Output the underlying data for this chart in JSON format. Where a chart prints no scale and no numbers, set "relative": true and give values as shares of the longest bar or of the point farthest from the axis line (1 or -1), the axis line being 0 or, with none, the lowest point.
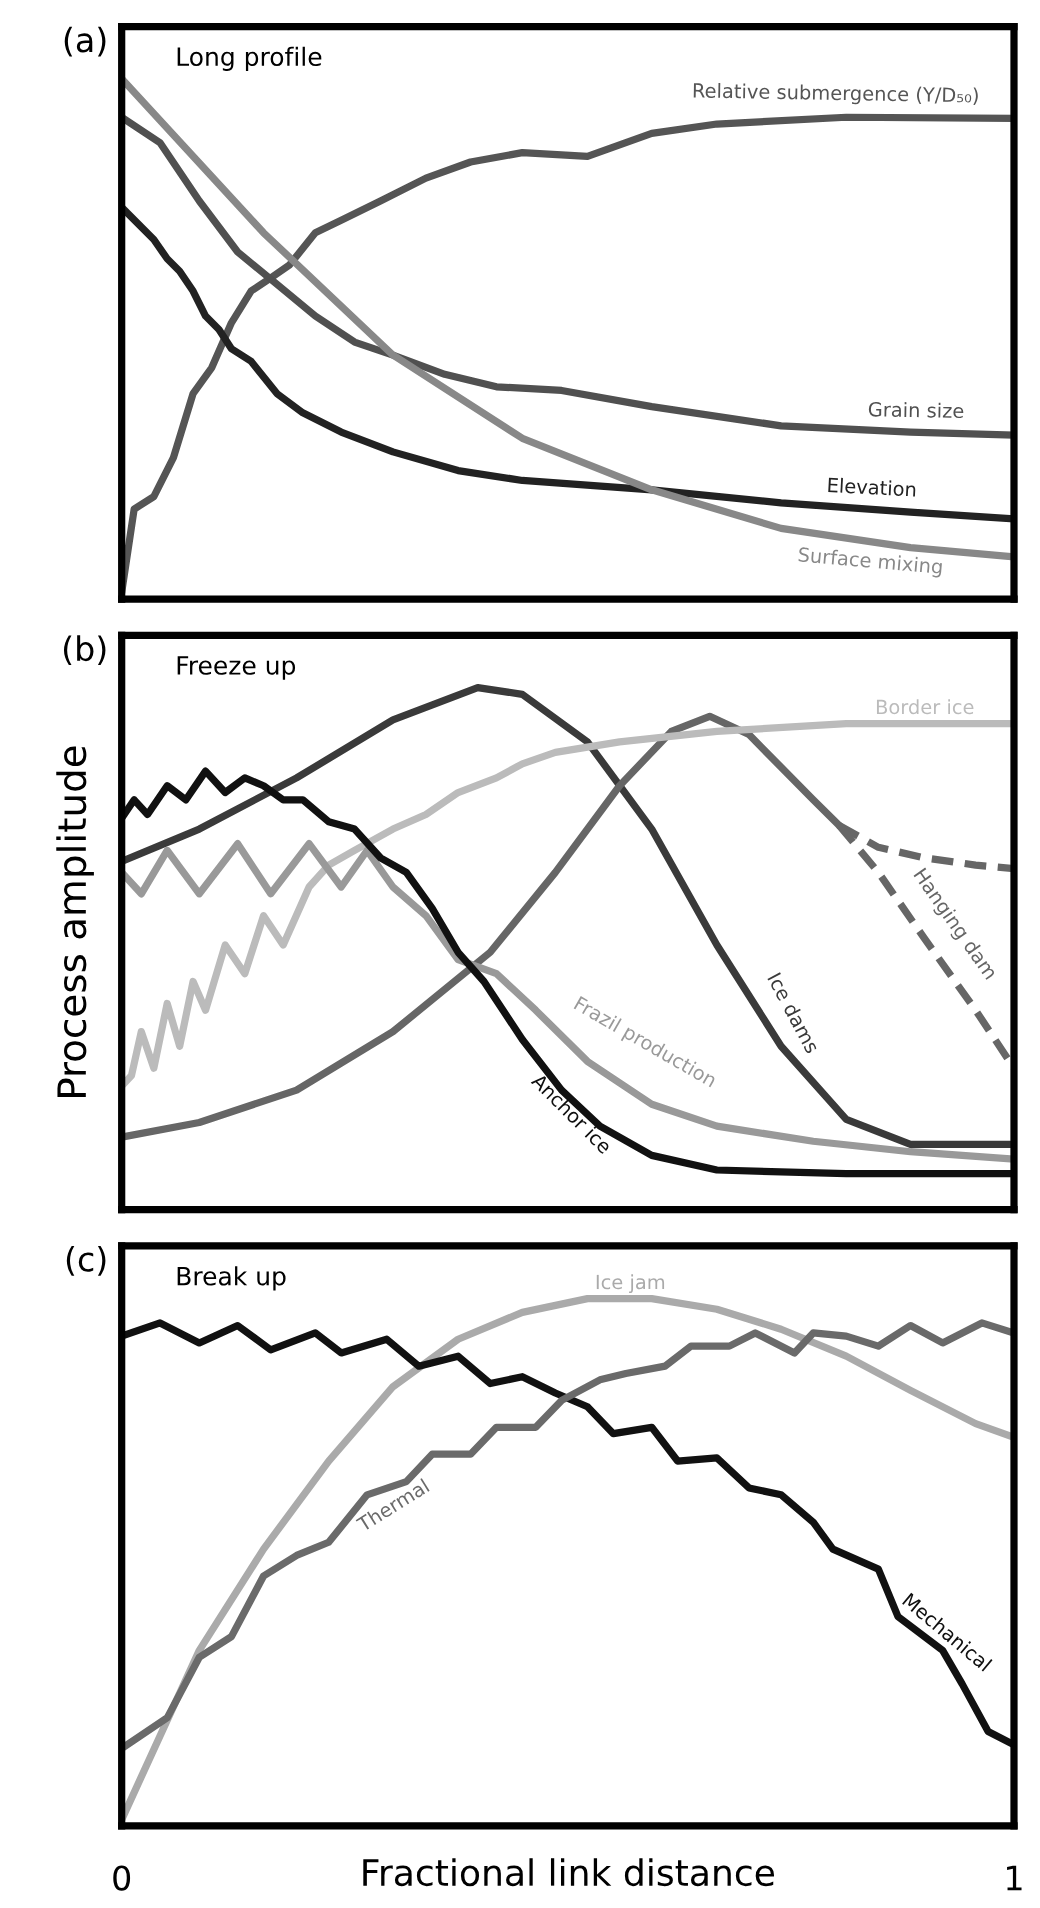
{
  "chart_data": [
    {
      "type": "line",
      "title": "Long profile",
      "annotations": [
        "(a)"
      ],
      "relative": true,
      "xlim": [
        0,
        1
      ],
      "xticks": [
        0,
        1
      ],
      "tick_labels": false,
      "legend": false,
      "marker": "none",
      "line_style": "solid",
      "series": [
        {
          "name": "Relative submergence (Y/D₅₀)",
          "color": "#555555",
          "x": [
            0,
            0.014,
            0.036,
            0.058,
            0.08,
            0.101,
            0.123,
            0.145,
            0.167,
            0.188,
            0.217,
            0.246,
            0.29,
            0.341,
            0.391,
            0.449,
            0.522,
            0.594,
            0.667,
            0.812,
            1
          ],
          "values": [
            0.013,
            0.173,
            0.197,
            0.272,
            0.395,
            0.445,
            0.531,
            0.592,
            0.617,
            0.642,
            0.704,
            0.728,
            0.765,
            0.809,
            0.84,
            0.858,
            0.851,
            0.895,
            0.913,
            0.926,
            0.924
          ]
        },
        {
          "name": "Grain size",
          "color": "#505050",
          "x": [
            0,
            0.043,
            0.087,
            0.13,
            0.174,
            0.217,
            0.261,
            0.304,
            0.362,
            0.42,
            0.493,
            0.594,
            0.739,
            0.884,
            1
          ],
          "values": [
            0.926,
            0.877,
            0.765,
            0.667,
            0.605,
            0.544,
            0.494,
            0.469,
            0.432,
            0.408,
            0.401,
            0.37,
            0.333,
            0.321,
            0.315
          ]
        },
        {
          "name": "Elevation",
          "color": "#222222",
          "x": [
            0,
            0.036,
            0.051,
            0.065,
            0.08,
            0.094,
            0.109,
            0.123,
            0.145,
            0.174,
            0.203,
            0.246,
            0.304,
            0.377,
            0.449,
            0.594,
            0.739,
            0.884,
            1
          ],
          "values": [
            0.753,
            0.691,
            0.654,
            0.63,
            0.592,
            0.544,
            0.518,
            0.481,
            0.457,
            0.395,
            0.358,
            0.321,
            0.283,
            0.247,
            0.228,
            0.21,
            0.185,
            0.167,
            0.154
          ]
        },
        {
          "name": "Surface mixing",
          "color": "#888888",
          "x": [
            0,
            0.159,
            0.304,
            0.449,
            0.594,
            0.739,
            0.884,
            1
          ],
          "values": [
            1,
            0.704,
            0.469,
            0.309,
            0.21,
            0.136,
            0.099,
            0.081
          ]
        }
      ]
    },
    {
      "type": "line",
      "title": "Freeze up",
      "annotations": [
        "(b)"
      ],
      "ylabel": "Process amplitude",
      "relative": true,
      "xlim": [
        0,
        1
      ],
      "xticks": [
        0,
        1
      ],
      "tick_labels": false,
      "legend": false,
      "marker": "none",
      "line_style": "solid",
      "series": [
        {
          "name": "Ice dams",
          "color": "#3a3a3a",
          "x": [
            0,
            0.087,
            0.196,
            0.304,
            0.399,
            0.449,
            0.522,
            0.594,
            0.667,
            0.739,
            0.812,
            0.884,
            1
          ],
          "values": [
            0.667,
            0.729,
            0.827,
            0.938,
            1,
            0.987,
            0.896,
            0.729,
            0.507,
            0.313,
            0.173,
            0.125,
            0.125
          ]
        },
        {
          "color": "#666666",
          "x": [
            0,
            0.087,
            0.196,
            0.304,
            0.413,
            0.486,
            0.558,
            0.616,
            0.659,
            0.703,
            0.775,
            0.804
          ],
          "values": [
            0.139,
            0.167,
            0.229,
            0.341,
            0.493,
            0.646,
            0.812,
            0.916,
            0.945,
            0.91,
            0.785,
            0.736
          ]
        },
        {
          "color": "#666666",
          "line_style": "dashed",
          "x": [
            0.804,
            0.848,
            0.899,
            0.957,
            1
          ],
          "values": [
            0.736,
            0.694,
            0.674,
            0.66,
            0.653
          ]
        },
        {
          "name": "Hanging dam",
          "color": "#666666",
          "line_style": "dashed",
          "x": [
            0.804,
            0.848,
            0.899,
            0.957,
            1
          ],
          "values": [
            0.736,
            0.646,
            0.521,
            0.382,
            0.271
          ]
        },
        {
          "name": "Border ice",
          "color": "#bbbbbb",
          "x": [
            0,
            0.011,
            0.022,
            0.036,
            0.051,
            0.065,
            0.08,
            0.094,
            0.116,
            0.138,
            0.159,
            0.181,
            0.21,
            0.232,
            0.261,
            0.304,
            0.341,
            0.377,
            0.42,
            0.449,
            0.486,
            0.558,
            0.667,
            0.812,
            1
          ],
          "values": [
            0.237,
            0.257,
            0.341,
            0.271,
            0.395,
            0.313,
            0.437,
            0.382,
            0.507,
            0.452,
            0.563,
            0.507,
            0.618,
            0.66,
            0.688,
            0.729,
            0.757,
            0.799,
            0.827,
            0.854,
            0.876,
            0.896,
            0.916,
            0.931,
            0.931
          ]
        },
        {
          "name": "Frazil production",
          "color": "#999999",
          "x": [
            0,
            0.022,
            0.051,
            0.087,
            0.13,
            0.167,
            0.21,
            0.246,
            0.275,
            0.304,
            0.341,
            0.377,
            0.42,
            0.464,
            0.522,
            0.594,
            0.667,
            0.775,
            0.884,
            1
          ],
          "values": [
            0.646,
            0.605,
            0.688,
            0.605,
            0.701,
            0.605,
            0.701,
            0.618,
            0.688,
            0.618,
            0.563,
            0.479,
            0.452,
            0.382,
            0.284,
            0.202,
            0.16,
            0.131,
            0.111,
            0.097
          ]
        },
        {
          "name": "Anchor ice",
          "color": "#111111",
          "x": [
            0,
            0.014,
            0.029,
            0.051,
            0.072,
            0.094,
            0.116,
            0.138,
            0.159,
            0.181,
            0.203,
            0.232,
            0.261,
            0.29,
            0.319,
            0.348,
            0.377,
            0.406,
            0.449,
            0.493,
            0.536,
            0.594,
            0.667,
            0.812,
            1
          ],
          "values": [
            0.75,
            0.785,
            0.757,
            0.812,
            0.785,
            0.84,
            0.799,
            0.827,
            0.812,
            0.785,
            0.785,
            0.743,
            0.729,
            0.674,
            0.646,
            0.577,
            0.493,
            0.437,
            0.326,
            0.229,
            0.16,
            0.104,
            0.076,
            0.069,
            0.069
          ]
        }
      ]
    },
    {
      "type": "line",
      "title": "Break up",
      "annotations": [
        "(c)"
      ],
      "xlabel": "Fractional link distance",
      "relative": true,
      "xlim": [
        0,
        1
      ],
      "xticks": [
        0,
        1
      ],
      "tick_labels": "x",
      "legend": false,
      "marker": "none",
      "line_style": "solid",
      "series": [
        {
          "name": "Ice jam",
          "color": "#aaaaaa",
          "x": [
            0,
            0.087,
            0.159,
            0.232,
            0.304,
            0.377,
            0.449,
            0.522,
            0.594,
            0.667,
            0.739,
            0.812,
            0.884,
            0.957,
            1
          ],
          "values": [
            0.012,
            0.333,
            0.525,
            0.692,
            0.833,
            0.923,
            0.974,
            1,
            1,
            0.98,
            0.942,
            0.891,
            0.826,
            0.763,
            0.737
          ]
        },
        {
          "name": "Mechanical",
          "color": "#111111",
          "x": [
            0,
            0.043,
            0.087,
            0.13,
            0.167,
            0.217,
            0.246,
            0.297,
            0.333,
            0.377,
            0.413,
            0.449,
            0.486,
            0.522,
            0.551,
            0.594,
            0.623,
            0.667,
            0.703,
            0.739,
            0.775,
            0.797,
            0.848,
            0.87,
            0.92,
            0.942,
            0.971,
            1
          ],
          "values": [
            0.929,
            0.954,
            0.916,
            0.949,
            0.903,
            0.935,
            0.897,
            0.923,
            0.872,
            0.891,
            0.839,
            0.852,
            0.821,
            0.795,
            0.744,
            0.756,
            0.692,
            0.698,
            0.641,
            0.628,
            0.576,
            0.525,
            0.487,
            0.397,
            0.333,
            0.269,
            0.179,
            0.154
          ]
        },
        {
          "name": "Thermal",
          "color": "#6a6a6a",
          "x": [
            0,
            0.051,
            0.087,
            0.123,
            0.159,
            0.196,
            0.232,
            0.275,
            0.319,
            0.348,
            0.391,
            0.42,
            0.464,
            0.493,
            0.536,
            0.565,
            0.609,
            0.638,
            0.681,
            0.71,
            0.754,
            0.775,
            0.812,
            0.848,
            0.884,
            0.92,
            0.964,
            1
          ],
          "values": [
            0.147,
            0.205,
            0.32,
            0.359,
            0.474,
            0.513,
            0.538,
            0.628,
            0.653,
            0.705,
            0.705,
            0.756,
            0.756,
            0.807,
            0.846,
            0.858,
            0.872,
            0.91,
            0.91,
            0.935,
            0.897,
            0.935,
            0.929,
            0.91,
            0.949,
            0.916,
            0.954,
            0.935
          ]
        }
      ]
    }
  ]
}
